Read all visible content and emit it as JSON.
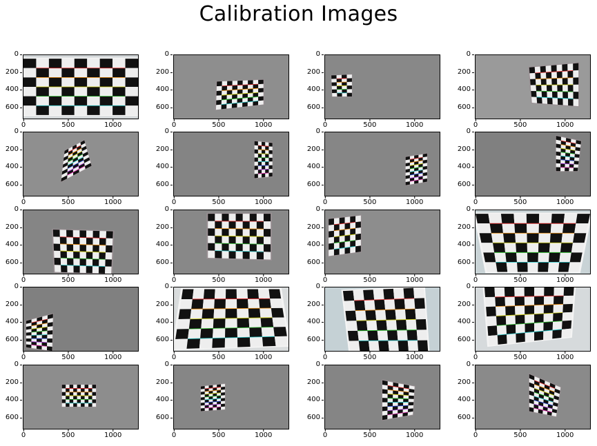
{
  "figure": {
    "title": "Calibration Images",
    "y_ticks": [
      "0",
      "200",
      "400",
      "600"
    ],
    "x_ticks": [
      "0",
      "500",
      "1000"
    ],
    "x_range": [
      0,
      1280
    ],
    "y_range": [
      720,
      0
    ]
  },
  "panels": [
    {
      "bg": "#d4d8da",
      "board": {
        "pts": [
          [
            0,
            40
          ],
          [
            1280,
            40
          ],
          [
            1280,
            680
          ],
          [
            0,
            680
          ]
        ],
        "rows": 6,
        "cols": 9
      }
    },
    {
      "bg": "#8e8e8e",
      "board": {
        "pts": [
          [
            480,
            300
          ],
          [
            1000,
            280
          ],
          [
            1000,
            560
          ],
          [
            470,
            620
          ]
        ],
        "rows": 6,
        "cols": 9
      }
    },
    {
      "bg": "#888888",
      "board": {
        "pts": [
          [
            70,
            230
          ],
          [
            300,
            220
          ],
          [
            300,
            470
          ],
          [
            80,
            470
          ]
        ],
        "rows": 6,
        "cols": 4
      }
    },
    {
      "bg": "#9a9a9a",
      "board": {
        "pts": [
          [
            600,
            140
          ],
          [
            1150,
            90
          ],
          [
            1150,
            580
          ],
          [
            630,
            540
          ]
        ],
        "rows": 6,
        "cols": 9
      }
    },
    {
      "bg": "#8f8f8f",
      "board": {
        "pts": [
          [
            460,
            210
          ],
          [
            680,
            90
          ],
          [
            760,
            380
          ],
          [
            420,
            560
          ]
        ],
        "rows": 9,
        "cols": 5
      }
    },
    {
      "bg": "#848484",
      "board": {
        "pts": [
          [
            900,
            100
          ],
          [
            1100,
            120
          ],
          [
            1100,
            500
          ],
          [
            900,
            520
          ]
        ],
        "rows": 9,
        "cols": 5
      }
    },
    {
      "bg": "#868686",
      "board": {
        "pts": [
          [
            900,
            280
          ],
          [
            1140,
            240
          ],
          [
            1140,
            560
          ],
          [
            900,
            600
          ]
        ],
        "rows": 9,
        "cols": 5
      }
    },
    {
      "bg": "#808080",
      "board": {
        "pts": [
          [
            900,
            40
          ],
          [
            1180,
            100
          ],
          [
            1140,
            440
          ],
          [
            900,
            440
          ]
        ],
        "rows": 9,
        "cols": 5
      }
    },
    {
      "bg": "#858585",
      "board": {
        "pts": [
          [
            330,
            220
          ],
          [
            1000,
            240
          ],
          [
            980,
            720
          ],
          [
            350,
            700
          ]
        ],
        "rows": 6,
        "cols": 9
      }
    },
    {
      "bg": "#888888",
      "board": {
        "pts": [
          [
            380,
            40
          ],
          [
            1080,
            40
          ],
          [
            1080,
            560
          ],
          [
            380,
            540
          ]
        ],
        "rows": 6,
        "cols": 9
      }
    },
    {
      "bg": "#8d8d8d",
      "board": {
        "pts": [
          [
            40,
            100
          ],
          [
            400,
            60
          ],
          [
            400,
            470
          ],
          [
            40,
            520
          ]
        ],
        "rows": 6,
        "cols": 6
      }
    },
    {
      "bg": "#c9d3d6",
      "board": {
        "pts": [
          [
            0,
            40
          ],
          [
            1280,
            40
          ],
          [
            1150,
            700
          ],
          [
            130,
            700
          ]
        ],
        "rows": 6,
        "cols": 9
      }
    },
    {
      "bg": "#808080",
      "board": {
        "pts": [
          [
            30,
            380
          ],
          [
            330,
            300
          ],
          [
            320,
            720
          ],
          [
            30,
            680
          ]
        ],
        "rows": 9,
        "cols": 5
      }
    },
    {
      "bg": "#d9dcdd",
      "board": {
        "pts": [
          [
            100,
            20
          ],
          [
            1180,
            20
          ],
          [
            1280,
            660
          ],
          [
            0,
            700
          ]
        ],
        "rows": 6,
        "cols": 9
      }
    },
    {
      "bg": "#c5d1d5",
      "board": {
        "pts": [
          [
            200,
            40
          ],
          [
            1100,
            0
          ],
          [
            1150,
            720
          ],
          [
            280,
            720
          ]
        ],
        "rows": 6,
        "cols": 8
      }
    },
    {
      "bg": "#d6dadc",
      "board": {
        "pts": [
          [
            100,
            0
          ],
          [
            1100,
            0
          ],
          [
            1060,
            560
          ],
          [
            150,
            660
          ]
        ],
        "rows": 6,
        "cols": 9
      }
    },
    {
      "bg": "#8d8d8d",
      "board": {
        "pts": [
          [
            430,
            220
          ],
          [
            810,
            220
          ],
          [
            810,
            470
          ],
          [
            430,
            470
          ]
        ],
        "rows": 6,
        "cols": 9
      }
    },
    {
      "bg": "#868686",
      "board": {
        "pts": [
          [
            300,
            240
          ],
          [
            570,
            210
          ],
          [
            570,
            500
          ],
          [
            300,
            520
          ]
        ],
        "rows": 9,
        "cols": 6
      }
    },
    {
      "bg": "#858585",
      "board": {
        "pts": [
          [
            640,
            170
          ],
          [
            1000,
            240
          ],
          [
            980,
            560
          ],
          [
            640,
            620
          ]
        ],
        "rows": 9,
        "cols": 6
      }
    },
    {
      "bg": "#8a8a8a",
      "board": {
        "pts": [
          [
            600,
            100
          ],
          [
            950,
            250
          ],
          [
            900,
            580
          ],
          [
            600,
            520
          ]
        ],
        "rows": 9,
        "cols": 6
      }
    }
  ]
}
